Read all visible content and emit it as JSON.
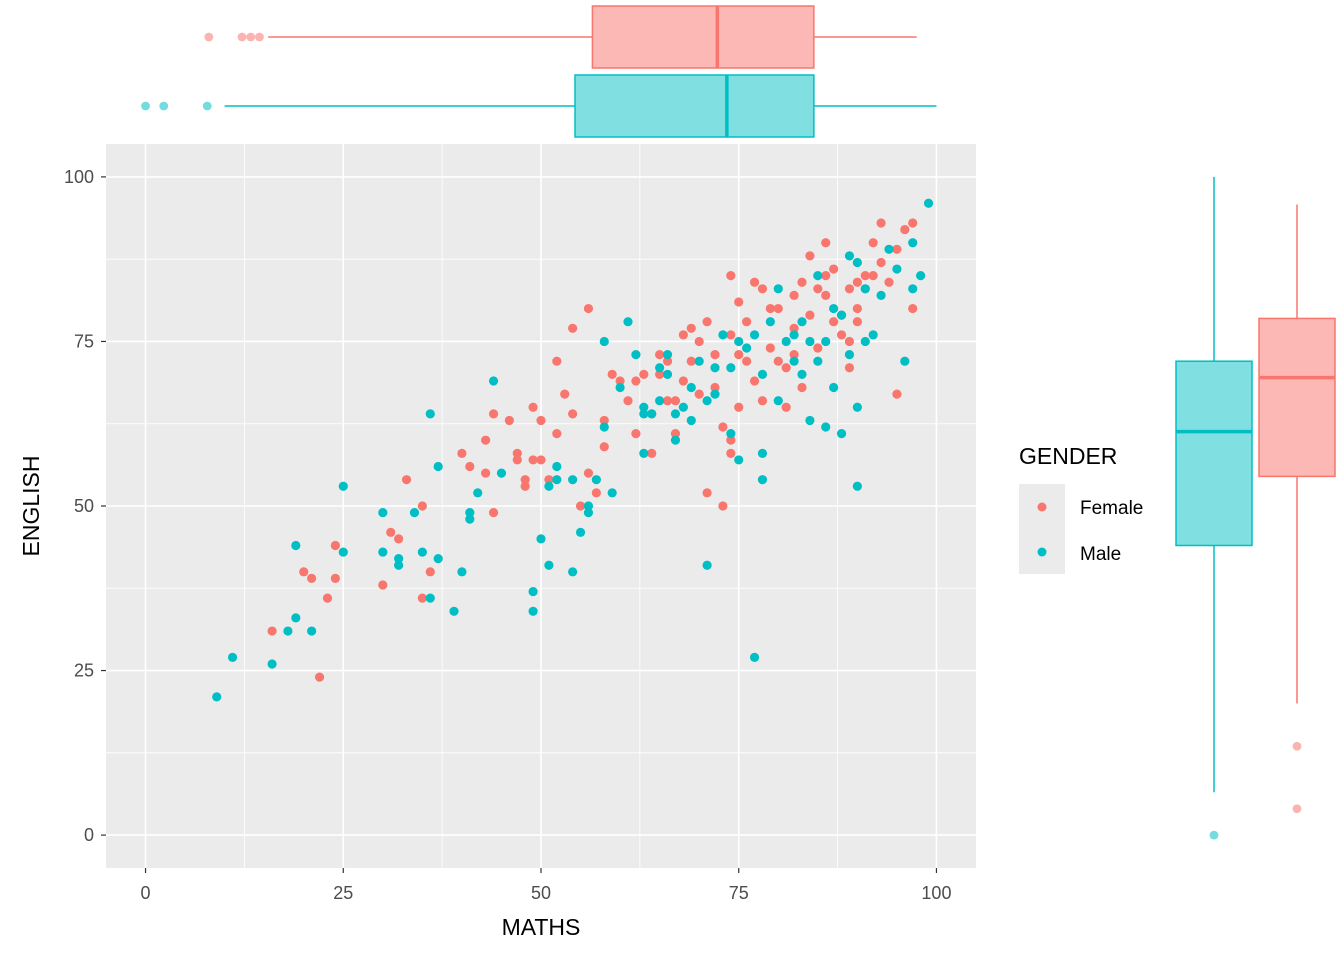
{
  "chart_data": {
    "type": "scatter",
    "title": "",
    "xlabel": "MATHS",
    "ylabel": "ENGLISH",
    "xlim": [
      -5,
      105
    ],
    "ylim": [
      -5,
      105
    ],
    "x_ticks": [
      "0",
      "25",
      "50",
      "75",
      "100"
    ],
    "y_ticks": [
      "0",
      "25",
      "50",
      "75",
      "100"
    ],
    "grid": true,
    "legend": {
      "title": "GENDER",
      "position": "right",
      "entries": [
        "Female",
        "Male"
      ]
    },
    "colors": {
      "Female": "#F8766D",
      "Male": "#00BFC4"
    },
    "series": [
      {
        "name": "Female",
        "points": [
          [
            16,
            31
          ],
          [
            20,
            40
          ],
          [
            21,
            39
          ],
          [
            22,
            24
          ],
          [
            23,
            36
          ],
          [
            24,
            39
          ],
          [
            24,
            44
          ],
          [
            30,
            38
          ],
          [
            31,
            46
          ],
          [
            32,
            45
          ],
          [
            33,
            54
          ],
          [
            35,
            50
          ],
          [
            35,
            36
          ],
          [
            36,
            40
          ],
          [
            40,
            58
          ],
          [
            41,
            56
          ],
          [
            43,
            60
          ],
          [
            43,
            55
          ],
          [
            44,
            49
          ],
          [
            44,
            64
          ],
          [
            46,
            63
          ],
          [
            47,
            58
          ],
          [
            47,
            57
          ],
          [
            48,
            54
          ],
          [
            48,
            53
          ],
          [
            49,
            65
          ],
          [
            49,
            57
          ],
          [
            50,
            57
          ],
          [
            50,
            63
          ],
          [
            51,
            54
          ],
          [
            52,
            72
          ],
          [
            52,
            61
          ],
          [
            53,
            67
          ],
          [
            54,
            64
          ],
          [
            54,
            77
          ],
          [
            55,
            50
          ],
          [
            56,
            55
          ],
          [
            56,
            80
          ],
          [
            57,
            52
          ],
          [
            58,
            59
          ],
          [
            58,
            63
          ],
          [
            59,
            70
          ],
          [
            60,
            69
          ],
          [
            61,
            66
          ],
          [
            62,
            61
          ],
          [
            62,
            69
          ],
          [
            63,
            70
          ],
          [
            64,
            58
          ],
          [
            64,
            64
          ],
          [
            65,
            70
          ],
          [
            65,
            73
          ],
          [
            66,
            66
          ],
          [
            66,
            72
          ],
          [
            67,
            66
          ],
          [
            67,
            61
          ],
          [
            68,
            69
          ],
          [
            68,
            76
          ],
          [
            69,
            72
          ],
          [
            69,
            77
          ],
          [
            70,
            67
          ],
          [
            70,
            75
          ],
          [
            71,
            52
          ],
          [
            71,
            78
          ],
          [
            72,
            73
          ],
          [
            72,
            68
          ],
          [
            73,
            50
          ],
          [
            73,
            62
          ],
          [
            74,
            58
          ],
          [
            74,
            60
          ],
          [
            74,
            76
          ],
          [
            74,
            85
          ],
          [
            75,
            73
          ],
          [
            75,
            81
          ],
          [
            75,
            65
          ],
          [
            76,
            78
          ],
          [
            76,
            72
          ],
          [
            77,
            69
          ],
          [
            77,
            84
          ],
          [
            78,
            66
          ],
          [
            78,
            83
          ],
          [
            79,
            80
          ],
          [
            79,
            74
          ],
          [
            80,
            72
          ],
          [
            80,
            80
          ],
          [
            81,
            71
          ],
          [
            81,
            65
          ],
          [
            82,
            73
          ],
          [
            82,
            77
          ],
          [
            82,
            82
          ],
          [
            83,
            68
          ],
          [
            83,
            84
          ],
          [
            84,
            79
          ],
          [
            84,
            88
          ],
          [
            85,
            83
          ],
          [
            85,
            74
          ],
          [
            86,
            82
          ],
          [
            86,
            85
          ],
          [
            86,
            90
          ],
          [
            87,
            78
          ],
          [
            87,
            86
          ],
          [
            88,
            79
          ],
          [
            88,
            76
          ],
          [
            89,
            71
          ],
          [
            89,
            75
          ],
          [
            89,
            83
          ],
          [
            90,
            80
          ],
          [
            90,
            84
          ],
          [
            90,
            78
          ],
          [
            91,
            85
          ],
          [
            91,
            83
          ],
          [
            92,
            85
          ],
          [
            92,
            90
          ],
          [
            93,
            93
          ],
          [
            93,
            87
          ],
          [
            94,
            84
          ],
          [
            95,
            89
          ],
          [
            95,
            67
          ],
          [
            96,
            92
          ],
          [
            97,
            80
          ],
          [
            97,
            93
          ]
        ]
      },
      {
        "name": "Male",
        "points": [
          [
            9,
            21
          ],
          [
            11,
            27
          ],
          [
            16,
            26
          ],
          [
            18,
            31
          ],
          [
            19,
            33
          ],
          [
            19,
            44
          ],
          [
            21,
            31
          ],
          [
            25,
            43
          ],
          [
            25,
            53
          ],
          [
            30,
            43
          ],
          [
            30,
            49
          ],
          [
            32,
            41
          ],
          [
            32,
            42
          ],
          [
            34,
            49
          ],
          [
            35,
            43
          ],
          [
            36,
            36
          ],
          [
            36,
            64
          ],
          [
            37,
            42
          ],
          [
            37,
            56
          ],
          [
            39,
            34
          ],
          [
            40,
            40
          ],
          [
            41,
            48
          ],
          [
            41,
            49
          ],
          [
            42,
            52
          ],
          [
            44,
            69
          ],
          [
            45,
            55
          ],
          [
            49,
            34
          ],
          [
            49,
            37
          ],
          [
            50,
            45
          ],
          [
            51,
            41
          ],
          [
            51,
            53
          ],
          [
            52,
            56
          ],
          [
            52,
            54
          ],
          [
            54,
            40
          ],
          [
            54,
            54
          ],
          [
            55,
            46
          ],
          [
            56,
            49
          ],
          [
            56,
            50
          ],
          [
            57,
            54
          ],
          [
            58,
            62
          ],
          [
            58,
            75
          ],
          [
            59,
            52
          ],
          [
            60,
            68
          ],
          [
            61,
            78
          ],
          [
            62,
            73
          ],
          [
            63,
            65
          ],
          [
            63,
            58
          ],
          [
            63,
            64
          ],
          [
            64,
            64
          ],
          [
            65,
            71
          ],
          [
            65,
            66
          ],
          [
            66,
            73
          ],
          [
            66,
            70
          ],
          [
            67,
            64
          ],
          [
            67,
            60
          ],
          [
            68,
            65
          ],
          [
            69,
            68
          ],
          [
            69,
            63
          ],
          [
            70,
            72
          ],
          [
            71,
            41
          ],
          [
            71,
            66
          ],
          [
            72,
            71
          ],
          [
            72,
            67
          ],
          [
            73,
            76
          ],
          [
            74,
            71
          ],
          [
            74,
            61
          ],
          [
            75,
            57
          ],
          [
            75,
            75
          ],
          [
            76,
            74
          ],
          [
            77,
            27
          ],
          [
            77,
            76
          ],
          [
            78,
            54
          ],
          [
            78,
            70
          ],
          [
            78,
            58
          ],
          [
            79,
            78
          ],
          [
            80,
            66
          ],
          [
            80,
            83
          ],
          [
            81,
            75
          ],
          [
            82,
            72
          ],
          [
            82,
            76
          ],
          [
            83,
            70
          ],
          [
            83,
            78
          ],
          [
            84,
            75
          ],
          [
            84,
            63
          ],
          [
            85,
            85
          ],
          [
            85,
            72
          ],
          [
            86,
            75
          ],
          [
            86,
            62
          ],
          [
            87,
            68
          ],
          [
            87,
            80
          ],
          [
            88,
            61
          ],
          [
            88,
            79
          ],
          [
            89,
            88
          ],
          [
            89,
            73
          ],
          [
            90,
            53
          ],
          [
            90,
            65
          ],
          [
            90,
            87
          ],
          [
            91,
            75
          ],
          [
            91,
            83
          ],
          [
            92,
            76
          ],
          [
            93,
            82
          ],
          [
            94,
            89
          ],
          [
            95,
            86
          ],
          [
            96,
            72
          ],
          [
            97,
            90
          ],
          [
            97,
            83
          ],
          [
            98,
            85
          ],
          [
            99,
            96
          ]
        ]
      }
    ],
    "marginal_boxplots": {
      "x_axis": [
        {
          "name": "Female",
          "min": 15.5,
          "q1": 56.5,
          "median": 72.3,
          "q3": 84.5,
          "max": 97.5,
          "outliers": [
            8,
            12.2,
            13.3,
            14.4
          ]
        },
        {
          "name": "Male",
          "min": 10,
          "q1": 54.3,
          "median": 73.5,
          "q3": 84.5,
          "max": 100,
          "outliers": [
            0,
            2.3,
            7.8
          ]
        }
      ],
      "y_axis": [
        {
          "name": "Male",
          "min": 6.5,
          "q1": 44,
          "median": 61.3,
          "q3": 72,
          "max": 100,
          "outliers": [
            0
          ]
        },
        {
          "name": "Female",
          "min": 20,
          "q1": 54.5,
          "median": 69.5,
          "q3": 78.5,
          "max": 95.8,
          "outliers": [
            4,
            13.5
          ]
        }
      ]
    }
  }
}
